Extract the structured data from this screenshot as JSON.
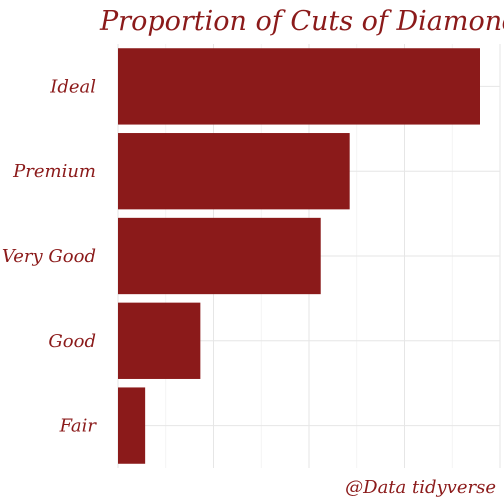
{
  "chart_data": {
    "type": "bar",
    "orientation": "horizontal",
    "title": "Proportion of Cuts of Diamonds",
    "caption": "@Data tidyverse",
    "categories": [
      "Ideal",
      "Premium",
      "Very Good",
      "Good",
      "Fair"
    ],
    "values": [
      0.4,
      0.256,
      0.224,
      0.091,
      0.03
    ],
    "xlim": [
      0,
      0.4
    ],
    "bar_color": "#8b1a1a",
    "grid": true,
    "legend": "none"
  }
}
